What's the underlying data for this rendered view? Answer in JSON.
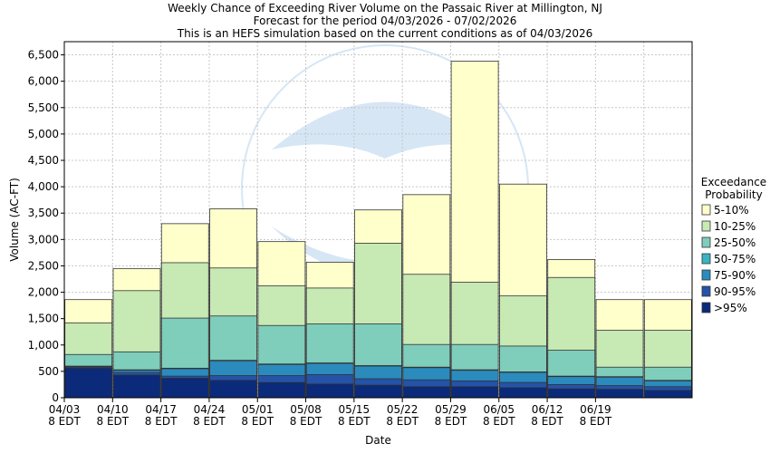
{
  "chart_data": {
    "type": "bar",
    "stacked": true,
    "title_lines": [
      "Weekly Chance of Exceeding River Volume on the Passaic River at Millington, NJ",
      "Forecast for the period 04/03/2026 - 07/02/2026",
      "This is an HEFS simulation based on the current conditions as of 04/03/2026"
    ],
    "xlabel": "Date",
    "ylabel": "Volume (AC-FT)",
    "ylim": [
      0,
      6750
    ],
    "yticks": [
      0,
      500,
      1000,
      1500,
      2000,
      2500,
      3000,
      3500,
      4000,
      4500,
      5000,
      5500,
      6000,
      6500
    ],
    "ytick_labels": [
      "0",
      "500",
      "1,000",
      "1,500",
      "2,000",
      "2,500",
      "3,000",
      "3,500",
      "4,000",
      "4,500",
      "5,000",
      "5,500",
      "6,000",
      "6,500"
    ],
    "xticks": [
      {
        "date": "04/03",
        "sub": "8 EDT"
      },
      {
        "date": "04/10",
        "sub": "8 EDT"
      },
      {
        "date": "04/17",
        "sub": "8 EDT"
      },
      {
        "date": "04/24",
        "sub": "8 EDT"
      },
      {
        "date": "05/01",
        "sub": "8 EDT"
      },
      {
        "date": "05/08",
        "sub": "8 EDT"
      },
      {
        "date": "05/15",
        "sub": "8 EDT"
      },
      {
        "date": "05/22",
        "sub": "8 EDT"
      },
      {
        "date": "05/29",
        "sub": "8 EDT"
      },
      {
        "date": "06/05",
        "sub": "8 EDT"
      },
      {
        "date": "06/12",
        "sub": "8 EDT"
      },
      {
        "date": "06/19",
        "sub": "8 EDT"
      }
    ],
    "weeks": 13,
    "grid": true,
    "legend": {
      "title": [
        "Exceedance",
        "Probability"
      ],
      "placement": "right"
    },
    "series": [
      {
        "name": ">95%",
        "color": "#0b2a7a",
        "tops": [
          560,
          430,
          370,
          330,
          290,
          260,
          240,
          210,
          210,
          190,
          170,
          160,
          140
        ]
      },
      {
        "name": "90-95%",
        "color": "#2453a8",
        "tops": [
          580,
          480,
          410,
          420,
          420,
          440,
          360,
          340,
          320,
          290,
          250,
          230,
          210
        ]
      },
      {
        "name": "75-90%",
        "color": "#2b8bbd",
        "tops": [
          590,
          520,
          550,
          700,
          630,
          650,
          600,
          570,
          520,
          480,
          400,
          390,
          320
        ]
      },
      {
        "name": "50-75%",
        "color": "#3ab3c4",
        "tops": [
          600,
          530,
          560,
          710,
          640,
          660,
          610,
          580,
          530,
          490,
          410,
          400,
          330
        ]
      },
      {
        "name": "25-50%",
        "color": "#7fcdbb",
        "tops": [
          820,
          870,
          1510,
          1550,
          1370,
          1400,
          1400,
          1010,
          1010,
          980,
          900,
          580,
          580
        ]
      },
      {
        "name": "10-25%",
        "color": "#c7e9b4",
        "tops": [
          1420,
          2030,
          2560,
          2460,
          2120,
          2080,
          2930,
          2340,
          2190,
          1930,
          2280,
          1280,
          1280
        ]
      },
      {
        "name": "5-10%",
        "color": "#ffffcc",
        "tops": [
          1860,
          2450,
          3300,
          3580,
          2960,
          2570,
          3560,
          3850,
          6380,
          4050,
          2620,
          1860,
          1860
        ]
      }
    ]
  }
}
